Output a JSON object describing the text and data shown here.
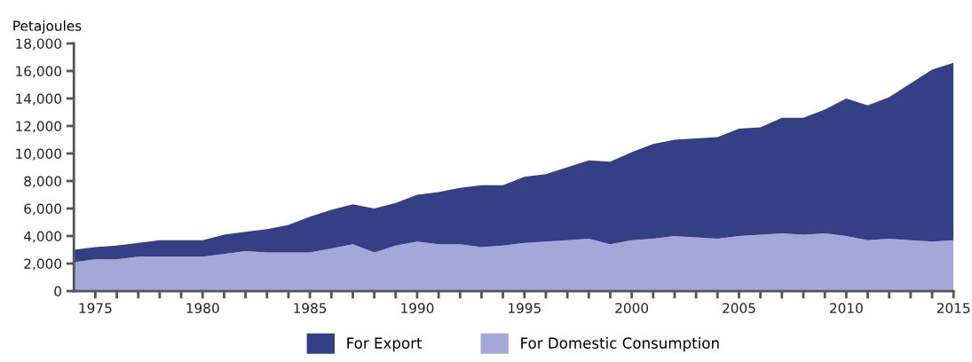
{
  "chart_data": {
    "type": "area",
    "stacked": true,
    "ylabel": "Petajoules",
    "x": [
      1974,
      1975,
      1976,
      1977,
      1978,
      1979,
      1980,
      1981,
      1982,
      1983,
      1984,
      1985,
      1986,
      1987,
      1988,
      1989,
      1990,
      1991,
      1992,
      1993,
      1994,
      1995,
      1996,
      1997,
      1998,
      1999,
      2000,
      2001,
      2002,
      2003,
      2004,
      2005,
      2006,
      2007,
      2008,
      2009,
      2010,
      2011,
      2012,
      2013,
      2014,
      2015
    ],
    "series": [
      {
        "name": "For Domestic Consumption",
        "color": "#a3a8d8",
        "values": [
          2100,
          2300,
          2300,
          2500,
          2500,
          2500,
          2500,
          2700,
          2900,
          2800,
          2800,
          2800,
          3100,
          3400,
          2800,
          3300,
          3600,
          3400,
          3400,
          3200,
          3300,
          3500,
          3600,
          3700,
          3800,
          3400,
          3700,
          3800,
          4000,
          3900,
          3800,
          4000,
          4100,
          4200,
          4100,
          4200,
          4000,
          3700,
          3800,
          3700,
          3600,
          3700
        ]
      },
      {
        "name": "For Export",
        "color": "#353f86",
        "values": [
          900,
          900,
          1000,
          1000,
          1200,
          1200,
          1200,
          1400,
          1400,
          1700,
          2000,
          2600,
          2800,
          2900,
          3200,
          3100,
          3400,
          3800,
          4100,
          4500,
          4400,
          4800,
          4900,
          5300,
          5700,
          6000,
          6400,
          6900,
          7000,
          7200,
          7400,
          7800,
          7800,
          8400,
          8500,
          9000,
          10000,
          9800,
          10300,
          11400,
          12500,
          12900
        ]
      }
    ],
    "xlim": [
      1974,
      2015
    ],
    "xticks": [
      1975,
      {
        "value": 1976,
        "label": null
      },
      {
        "value": 1977,
        "label": null
      },
      {
        "value": 1978,
        "label": null
      },
      {
        "value": 1979,
        "label": null
      },
      1980,
      {
        "value": 1981,
        "label": null
      },
      {
        "value": 1982,
        "label": null
      },
      {
        "value": 1983,
        "label": null
      },
      {
        "value": 1984,
        "label": null
      },
      1985,
      {
        "value": 1986,
        "label": null
      },
      {
        "value": 1987,
        "label": null
      },
      {
        "value": 1988,
        "label": null
      },
      {
        "value": 1989,
        "label": null
      },
      1990,
      {
        "value": 1991,
        "label": null
      },
      {
        "value": 1992,
        "label": null
      },
      {
        "value": 1993,
        "label": null
      },
      {
        "value": 1994,
        "label": null
      },
      1995,
      {
        "value": 1996,
        "label": null
      },
      {
        "value": 1997,
        "label": null
      },
      {
        "value": 1998,
        "label": null
      },
      {
        "value": 1999,
        "label": null
      },
      2000,
      {
        "value": 2001,
        "label": null
      },
      {
        "value": 2002,
        "label": null
      },
      {
        "value": 2003,
        "label": null
      },
      {
        "value": 2004,
        "label": null
      },
      2005,
      {
        "value": 2006,
        "label": null
      },
      {
        "value": 2007,
        "label": null
      },
      {
        "value": 2008,
        "label": null
      },
      {
        "value": 2009,
        "label": null
      },
      2010,
      {
        "value": 2011,
        "label": null
      },
      {
        "value": 2012,
        "label": null
      },
      {
        "value": 2013,
        "label": null
      },
      {
        "value": 2014,
        "label": null
      },
      2015
    ],
    "ylim": [
      0,
      18000
    ],
    "yticks": [
      {
        "value": 0,
        "label": "0"
      },
      {
        "value": 2000,
        "label": "2,000"
      },
      {
        "value": 4000,
        "label": "4,000"
      },
      {
        "value": 6000,
        "label": "6,000"
      },
      {
        "value": 8000,
        "label": "8,000"
      },
      {
        "value": 10000,
        "label": "10,000"
      },
      {
        "value": 12000,
        "label": "12,000"
      },
      {
        "value": 14000,
        "label": "14,000"
      },
      {
        "value": 16000,
        "label": "16,000"
      },
      {
        "value": 18000,
        "label": "18,000"
      }
    ],
    "grid": false,
    "legend": "bottom"
  }
}
